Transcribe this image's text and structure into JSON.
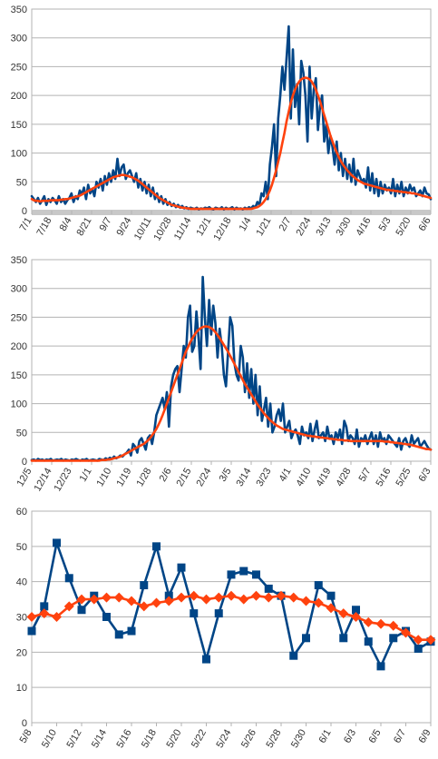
{
  "chart_data": [
    {
      "type": "line",
      "title": "",
      "xlabel": "",
      "ylabel": "",
      "ylim": [
        0,
        350
      ],
      "y_ticks": [
        0,
        50,
        100,
        150,
        200,
        250,
        300,
        350
      ],
      "x_tick_labels": [
        "7/1",
        "7/18",
        "8/4",
        "8/21",
        "9/7",
        "9/24",
        "10/11",
        "10/28",
        "11/14",
        "12/1",
        "12/18",
        "1/4",
        "1/21",
        "2/7",
        "2/24",
        "3/13",
        "3/30",
        "4/16",
        "5/3",
        "5/20",
        "6/6"
      ],
      "grid": true,
      "legend": "none",
      "series": [
        {
          "color": "#004586",
          "values": [
            25,
            20,
            15,
            22,
            12,
            18,
            25,
            10,
            20,
            15,
            22,
            18,
            12,
            25,
            15,
            20,
            12,
            18,
            22,
            30,
            15,
            25,
            20,
            35,
            28,
            40,
            20,
            45,
            30,
            38,
            25,
            50,
            40,
            55,
            35,
            60,
            45,
            65,
            50,
            70,
            55,
            90,
            60,
            75,
            80,
            55,
            65,
            70,
            60,
            50,
            65,
            40,
            55,
            35,
            50,
            30,
            45,
            25,
            40,
            20,
            30,
            15,
            25,
            12,
            20,
            10,
            15,
            8,
            12,
            6,
            10,
            5,
            8,
            4,
            6,
            3,
            5,
            4,
            3,
            5,
            2,
            4,
            3,
            5,
            4,
            6,
            3,
            2,
            5,
            4,
            3,
            6,
            2,
            5,
            3,
            4,
            6,
            2,
            5,
            3,
            4,
            2,
            5,
            3,
            6,
            4,
            8,
            5,
            15,
            10,
            30,
            25,
            50,
            20,
            80,
            110,
            150,
            60,
            160,
            200,
            250,
            210,
            265,
            320,
            160,
            280,
            180,
            220,
            150,
            260,
            240,
            200,
            120,
            250,
            160,
            210,
            230,
            140,
            180,
            200,
            120,
            150,
            100,
            130,
            110,
            80,
            120,
            70,
            100,
            60,
            90,
            55,
            80,
            50,
            90,
            45,
            70,
            60,
            50,
            55,
            40,
            75,
            35,
            65,
            30,
            55,
            25,
            50,
            30,
            45,
            35,
            40,
            30,
            55,
            25,
            45,
            30,
            50,
            25,
            40,
            30,
            45,
            35,
            40,
            25,
            30,
            35,
            25,
            40,
            30,
            28,
            20
          ]
        },
        {
          "color": "#ff420e",
          "values": [
            20,
            18,
            17,
            17,
            16,
            17,
            17,
            17,
            17,
            18,
            18,
            18,
            18,
            18,
            19,
            19,
            20,
            20,
            21,
            22,
            23,
            24,
            25,
            26,
            28,
            30,
            32,
            34,
            36,
            38,
            40,
            42,
            44,
            46,
            48,
            50,
            52,
            54,
            56,
            58,
            59,
            60,
            61,
            62,
            62,
            61,
            60,
            59,
            58,
            56,
            54,
            52,
            49,
            46,
            43,
            40,
            37,
            34,
            31,
            28,
            25,
            22,
            20,
            18,
            16,
            14,
            12,
            10,
            9,
            8,
            7,
            6,
            5,
            5,
            4,
            4,
            3,
            3,
            3,
            3,
            3,
            3,
            3,
            3,
            3,
            3,
            3,
            3,
            3,
            3,
            3,
            3,
            3,
            3,
            3,
            3,
            3,
            3,
            3,
            3,
            3,
            3,
            3,
            3,
            3,
            3,
            4,
            5,
            6,
            8,
            11,
            15,
            20,
            27,
            35,
            45,
            57,
            70,
            85,
            100,
            118,
            135,
            155,
            172,
            188,
            200,
            210,
            218,
            224,
            228,
            230,
            231,
            230,
            228,
            224,
            218,
            210,
            200,
            190,
            178,
            166,
            154,
            142,
            130,
            120,
            110,
            101,
            93,
            86,
            80,
            75,
            70,
            66,
            62,
            59,
            56,
            53,
            51,
            49,
            47,
            46,
            45,
            44,
            43,
            42,
            41,
            40,
            39,
            38,
            37,
            36,
            36,
            35,
            35,
            34,
            34,
            33,
            33,
            32,
            32,
            31,
            31,
            30,
            30,
            29,
            28,
            27,
            26,
            25,
            24,
            23,
            22
          ]
        }
      ]
    },
    {
      "type": "line",
      "title": "",
      "xlabel": "",
      "ylabel": "",
      "ylim": [
        0,
        350
      ],
      "y_ticks": [
        0,
        50,
        100,
        150,
        200,
        250,
        300,
        350
      ],
      "x_tick_labels": [
        "12/5",
        "12/14",
        "12/23",
        "1/1",
        "1/10",
        "1/19",
        "1/28",
        "2/6",
        "2/15",
        "2/24",
        "3/5",
        "3/14",
        "3/23",
        "4/1",
        "4/10",
        "4/19",
        "4/28",
        "5/7",
        "5/16",
        "5/25",
        "6/3"
      ],
      "grid": true,
      "legend": "none",
      "series": [
        {
          "color": "#004586",
          "values": [
            2,
            3,
            1,
            4,
            2,
            3,
            1,
            3,
            2,
            4,
            1,
            2,
            3,
            2,
            4,
            1,
            3,
            2,
            1,
            3,
            2,
            4,
            2,
            1,
            3,
            2,
            4,
            1,
            2,
            3,
            2,
            1,
            4,
            3,
            2,
            5,
            3,
            6,
            4,
            8,
            5,
            7,
            10,
            8,
            12,
            15,
            20,
            10,
            30,
            25,
            15,
            35,
            40,
            30,
            20,
            40,
            45,
            30,
            50,
            80,
            90,
            100,
            110,
            90,
            120,
            60,
            130,
            150,
            160,
            165,
            120,
            160,
            200,
            180,
            250,
            270,
            190,
            200,
            260,
            215,
            160,
            320,
            250,
            200,
            280,
            220,
            270,
            240,
            180,
            230,
            200,
            150,
            130,
            190,
            250,
            235,
            170,
            150,
            140,
            200,
            180,
            120,
            170,
            110,
            160,
            100,
            150,
            80,
            130,
            70,
            90,
            110,
            60,
            100,
            50,
            60,
            80,
            90,
            70,
            100,
            50,
            60,
            70,
            40,
            50,
            55,
            45,
            30,
            60,
            45,
            50,
            40,
            65,
            35,
            55,
            70,
            40,
            45,
            50,
            35,
            60,
            40,
            45,
            30,
            50,
            40,
            55,
            30,
            70,
            60,
            35,
            45,
            40,
            30,
            55,
            25,
            40,
            35,
            45,
            30,
            40,
            50,
            30,
            45,
            25,
            50,
            35,
            40,
            30,
            45,
            40,
            35,
            30,
            25,
            40,
            20,
            35,
            40,
            30,
            25,
            45,
            30,
            35,
            40,
            25,
            30,
            35,
            28,
            22,
            20
          ]
        },
        {
          "color": "#ff420e",
          "values": [
            1,
            1,
            1,
            1,
            1,
            1,
            1,
            1,
            1,
            1,
            1,
            1,
            1,
            1,
            1,
            1,
            1,
            1,
            1,
            1,
            1,
            1,
            1,
            1,
            1,
            1,
            1,
            1,
            1,
            1,
            1,
            1,
            1,
            2,
            2,
            2,
            3,
            3,
            4,
            5,
            6,
            7,
            8,
            10,
            12,
            14,
            16,
            18,
            20,
            22,
            24,
            26,
            28,
            30,
            33,
            36,
            40,
            45,
            50,
            56,
            63,
            71,
            80,
            90,
            100,
            110,
            120,
            130,
            140,
            150,
            160,
            170,
            180,
            190,
            198,
            206,
            213,
            219,
            224,
            228,
            231,
            233,
            234,
            234,
            233,
            231,
            228,
            224,
            219,
            214,
            208,
            202,
            196,
            190,
            183,
            176,
            169,
            162,
            155,
            148,
            141,
            134,
            128,
            122,
            116,
            110,
            104,
            98,
            93,
            88,
            83,
            79,
            75,
            71,
            68,
            65,
            62,
            60,
            58,
            56,
            55,
            54,
            53,
            52,
            51,
            50,
            49,
            48,
            47,
            46,
            45,
            44,
            44,
            43,
            43,
            42,
            42,
            41,
            41,
            40,
            40,
            39,
            39,
            38,
            38,
            37,
            37,
            37,
            36,
            36,
            36,
            35,
            35,
            35,
            35,
            35,
            35,
            35,
            35,
            35,
            35,
            35,
            35,
            35,
            35,
            35,
            35,
            34,
            34,
            34,
            33,
            33,
            32,
            32,
            31,
            31,
            30,
            30,
            29,
            29,
            28,
            27,
            26,
            25,
            24,
            23,
            22,
            21,
            21,
            20
          ]
        }
      ]
    },
    {
      "type": "line",
      "title": "",
      "xlabel": "",
      "ylabel": "",
      "ylim": [
        0,
        60
      ],
      "y_ticks": [
        0,
        10,
        20,
        30,
        40,
        50,
        60
      ],
      "x_tick_labels": [
        "5/8",
        "5/10",
        "5/12",
        "5/14",
        "5/16",
        "5/18",
        "5/20",
        "5/22",
        "5/24",
        "5/26",
        "5/28",
        "5/30",
        "6/1",
        "6/3",
        "6/5",
        "6/7",
        "6/9"
      ],
      "categories": [
        "5/8",
        "5/9",
        "5/10",
        "5/11",
        "5/12",
        "5/13",
        "5/14",
        "5/15",
        "5/16",
        "5/17",
        "5/18",
        "5/19",
        "5/20",
        "5/21",
        "5/22",
        "5/23",
        "5/24",
        "5/25",
        "5/26",
        "5/27",
        "5/28",
        "5/29",
        "5/30",
        "5/31",
        "6/1",
        "6/2",
        "6/3",
        "6/4",
        "6/5",
        "6/6",
        "6/7",
        "6/8",
        "6/9"
      ],
      "grid": true,
      "legend": "none",
      "series": [
        {
          "color": "#004586",
          "marker": "square",
          "values": [
            26,
            33,
            51,
            41,
            32,
            36,
            30,
            25,
            26,
            39,
            50,
            36,
            44,
            31,
            18,
            31,
            42,
            43,
            42,
            38,
            36,
            19,
            24,
            39,
            36,
            24,
            32,
            23,
            16,
            24,
            26,
            21,
            23
          ]
        },
        {
          "color": "#ff420e",
          "marker": "diamond",
          "values": [
            30,
            31,
            30,
            33,
            35,
            35,
            35.5,
            35.5,
            34.5,
            33,
            34,
            34.5,
            35.5,
            36,
            35,
            35.5,
            36,
            35,
            36,
            35.5,
            36,
            35.5,
            34.5,
            34,
            32.5,
            31,
            30,
            28.5,
            28,
            27.5,
            25.5,
            23.5,
            23.5
          ]
        }
      ]
    }
  ]
}
